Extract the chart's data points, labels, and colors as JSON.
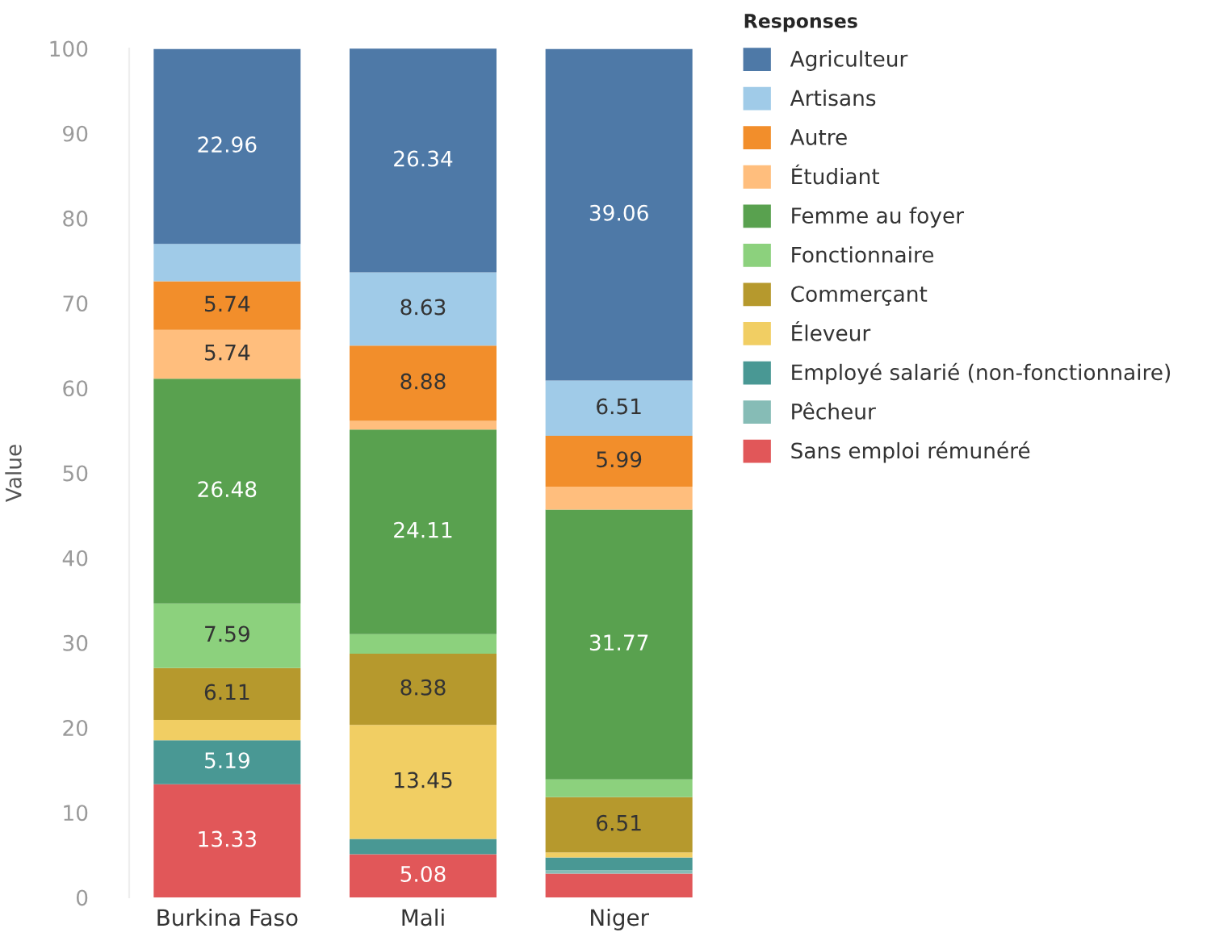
{
  "chart_data": {
    "type": "bar",
    "stacked": true,
    "ylabel": "Value",
    "legend_title": "Responses",
    "legend": "right",
    "categories": [
      "Burkina Faso",
      "Mali",
      "Niger"
    ],
    "ylim": [
      0,
      100
    ],
    "yticks": [
      0,
      10,
      20,
      30,
      40,
      50,
      60,
      70,
      80,
      90,
      100
    ],
    "series": [
      {
        "name": "Sans emploi rémunéré",
        "color": "#e15759",
        "values": [
          13.33,
          5.08,
          2.8
        ],
        "value_labels": [
          "13.33",
          "5.08",
          null
        ]
      },
      {
        "name": "Pêcheur",
        "color": "#86bcb6",
        "values": [
          null,
          null,
          0.4
        ]
      },
      {
        "name": "Employé salarié (non-fonctionnaire)",
        "color": "#499894",
        "values": [
          5.19,
          1.8,
          1.5
        ],
        "value_labels": [
          "5.19",
          null,
          null
        ]
      },
      {
        "name": "Éleveur",
        "color": "#f1ce63",
        "values": [
          2.4,
          13.45,
          0.6
        ],
        "value_labels": [
          null,
          "13.45",
          null
        ]
      },
      {
        "name": "Commerçant",
        "color": "#b6992d",
        "values": [
          6.11,
          8.38,
          6.51
        ],
        "value_labels": [
          "6.11",
          "8.38",
          "6.51"
        ]
      },
      {
        "name": "Fonctionnaire",
        "color": "#8cd17d",
        "values": [
          7.59,
          2.3,
          2.1
        ],
        "value_labels": [
          "7.59",
          null,
          null
        ]
      },
      {
        "name": "Femme au foyer",
        "color": "#59a14f",
        "values": [
          26.48,
          24.11,
          31.77
        ],
        "value_labels": [
          "26.48",
          "24.11",
          "31.77"
        ]
      },
      {
        "name": "Étudiant",
        "color": "#ffbe7d",
        "values": [
          5.74,
          1.0,
          2.7
        ],
        "value_labels": [
          "5.74",
          null,
          null
        ]
      },
      {
        "name": "Autre",
        "color": "#f28e2b",
        "values": [
          5.74,
          8.88,
          5.99
        ],
        "value_labels": [
          "5.74",
          "8.88",
          "5.99"
        ]
      },
      {
        "name": "Artisans",
        "color": "#a0cbe8",
        "values": [
          4.4,
          8.63,
          6.51
        ],
        "value_labels": [
          null,
          "8.63",
          "6.51"
        ]
      },
      {
        "name": "Agriculteur",
        "color": "#4e79a7",
        "values": [
          22.96,
          26.34,
          39.06
        ],
        "value_labels": [
          "22.96",
          "26.34",
          "39.06"
        ]
      }
    ]
  }
}
